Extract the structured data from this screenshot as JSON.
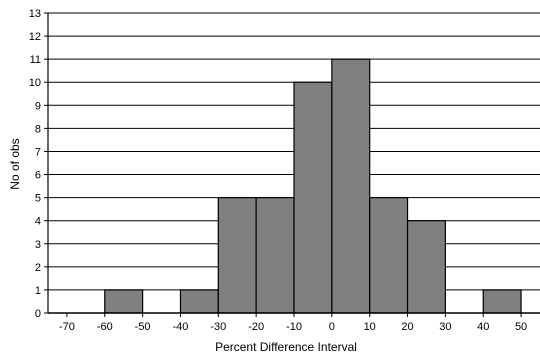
{
  "chart_data": {
    "type": "bar",
    "title": "",
    "xlabel": "Percent Difference Interval",
    "ylabel": "No of obs",
    "x_tick_labels": [
      "-70",
      "-60",
      "-50",
      "-40",
      "-30",
      "-20",
      "-10",
      "0",
      "10",
      "20",
      "30",
      "40",
      "50"
    ],
    "y_tick_labels": [
      "0",
      "1",
      "2",
      "3",
      "4",
      "5",
      "6",
      "7",
      "8",
      "9",
      "10",
      "11",
      "12",
      "13"
    ],
    "xlim": [
      -75,
      55
    ],
    "ylim": [
      0,
      13
    ],
    "grid": true,
    "bins": [
      {
        "from": -70,
        "to": -60,
        "count": 0
      },
      {
        "from": -60,
        "to": -50,
        "count": 1
      },
      {
        "from": -50,
        "to": -40,
        "count": 0
      },
      {
        "from": -40,
        "to": -30,
        "count": 1
      },
      {
        "from": -30,
        "to": -20,
        "count": 5
      },
      {
        "from": -20,
        "to": -10,
        "count": 5
      },
      {
        "from": -10,
        "to": 0,
        "count": 10
      },
      {
        "from": 0,
        "to": 10,
        "count": 11
      },
      {
        "from": 10,
        "to": 20,
        "count": 5
      },
      {
        "from": 20,
        "to": 30,
        "count": 4
      },
      {
        "from": 30,
        "to": 40,
        "count": 0
      },
      {
        "from": 40,
        "to": 50,
        "count": 1
      }
    ],
    "colors": {
      "bar_fill": "#808080",
      "bar_stroke": "#000000",
      "grid": "#000000",
      "axis": "#000000"
    }
  }
}
